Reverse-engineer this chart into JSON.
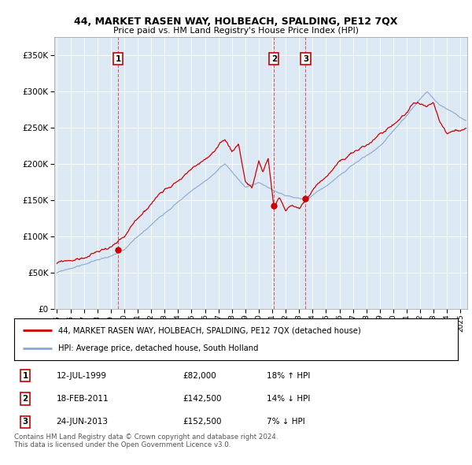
{
  "title": "44, MARKET RASEN WAY, HOLBEACH, SPALDING, PE12 7QX",
  "subtitle": "Price paid vs. HM Land Registry's House Price Index (HPI)",
  "legend_line1": "44, MARKET RASEN WAY, HOLBEACH, SPALDING, PE12 7QX (detached house)",
  "legend_line2": "HPI: Average price, detached house, South Holland",
  "red_color": "#cc0000",
  "blue_color": "#88aacc",
  "background_color": "#dce9f5",
  "transactions": [
    {
      "label": "1",
      "date": "12-JUL-1999",
      "price": 82000,
      "hpi_rel": "18% ↑ HPI",
      "year": 1999.54
    },
    {
      "label": "2",
      "date": "18-FEB-2011",
      "price": 142500,
      "hpi_rel": "14% ↓ HPI",
      "year": 2011.13
    },
    {
      "label": "3",
      "date": "24-JUN-2013",
      "price": 152500,
      "hpi_rel": "7% ↓ HPI",
      "year": 2013.48
    }
  ],
  "copyright": "Contains HM Land Registry data © Crown copyright and database right 2024.\nThis data is licensed under the Open Government Licence v3.0.",
  "ylim": [
    0,
    375000
  ],
  "xlim_start": 1994.8,
  "xlim_end": 2025.5,
  "yticks": [
    0,
    50000,
    100000,
    150000,
    200000,
    250000,
    300000,
    350000
  ],
  "xticks": [
    1995,
    1996,
    1997,
    1998,
    1999,
    2000,
    2001,
    2002,
    2003,
    2004,
    2005,
    2006,
    2007,
    2008,
    2009,
    2010,
    2011,
    2012,
    2013,
    2014,
    2015,
    2016,
    2017,
    2018,
    2019,
    2020,
    2021,
    2022,
    2023,
    2024,
    2025
  ]
}
